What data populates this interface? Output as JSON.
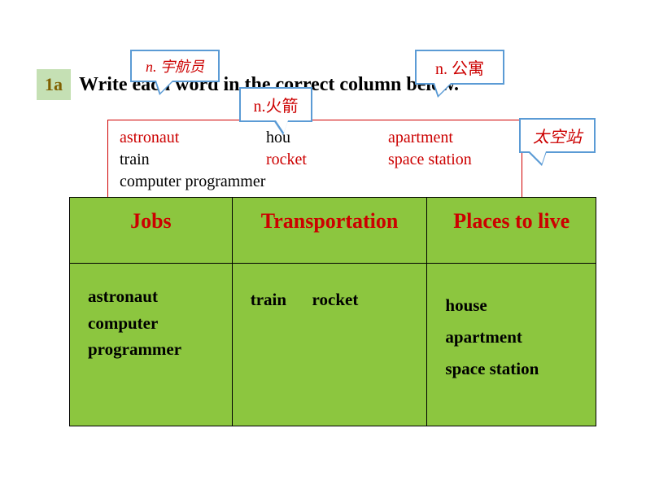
{
  "header": {
    "badge": "1a",
    "instruction": "Write each word in the correct column below."
  },
  "wordbox": {
    "row1": {
      "c1": "astronaut",
      "c2": "hou",
      "c3": "apartment"
    },
    "row2": {
      "c1": "train",
      "c2": "rocket",
      "c3": "space station"
    },
    "row3": {
      "c1": "computer programmer"
    }
  },
  "callouts": {
    "astronaut": "n. 宇航员",
    "apartment": "n.  公寓",
    "rocket": "n.火箭",
    "space_station": "太空站"
  },
  "table": {
    "headers": {
      "jobs": "Jobs",
      "transportation": "Transportation",
      "places": "Places to live"
    },
    "jobs": [
      "astronaut",
      "computer",
      "programmer"
    ],
    "transportation": "train      rocket",
    "places": [
      "house",
      "apartment",
      "space station"
    ]
  },
  "style": {
    "badge_bg": "#c5e0b4",
    "badge_color": "#806000",
    "red": "#cc0000",
    "table_bg": "#8cc63f",
    "callout_border": "#5b9bd5",
    "wordbox_border": "#d00000"
  }
}
